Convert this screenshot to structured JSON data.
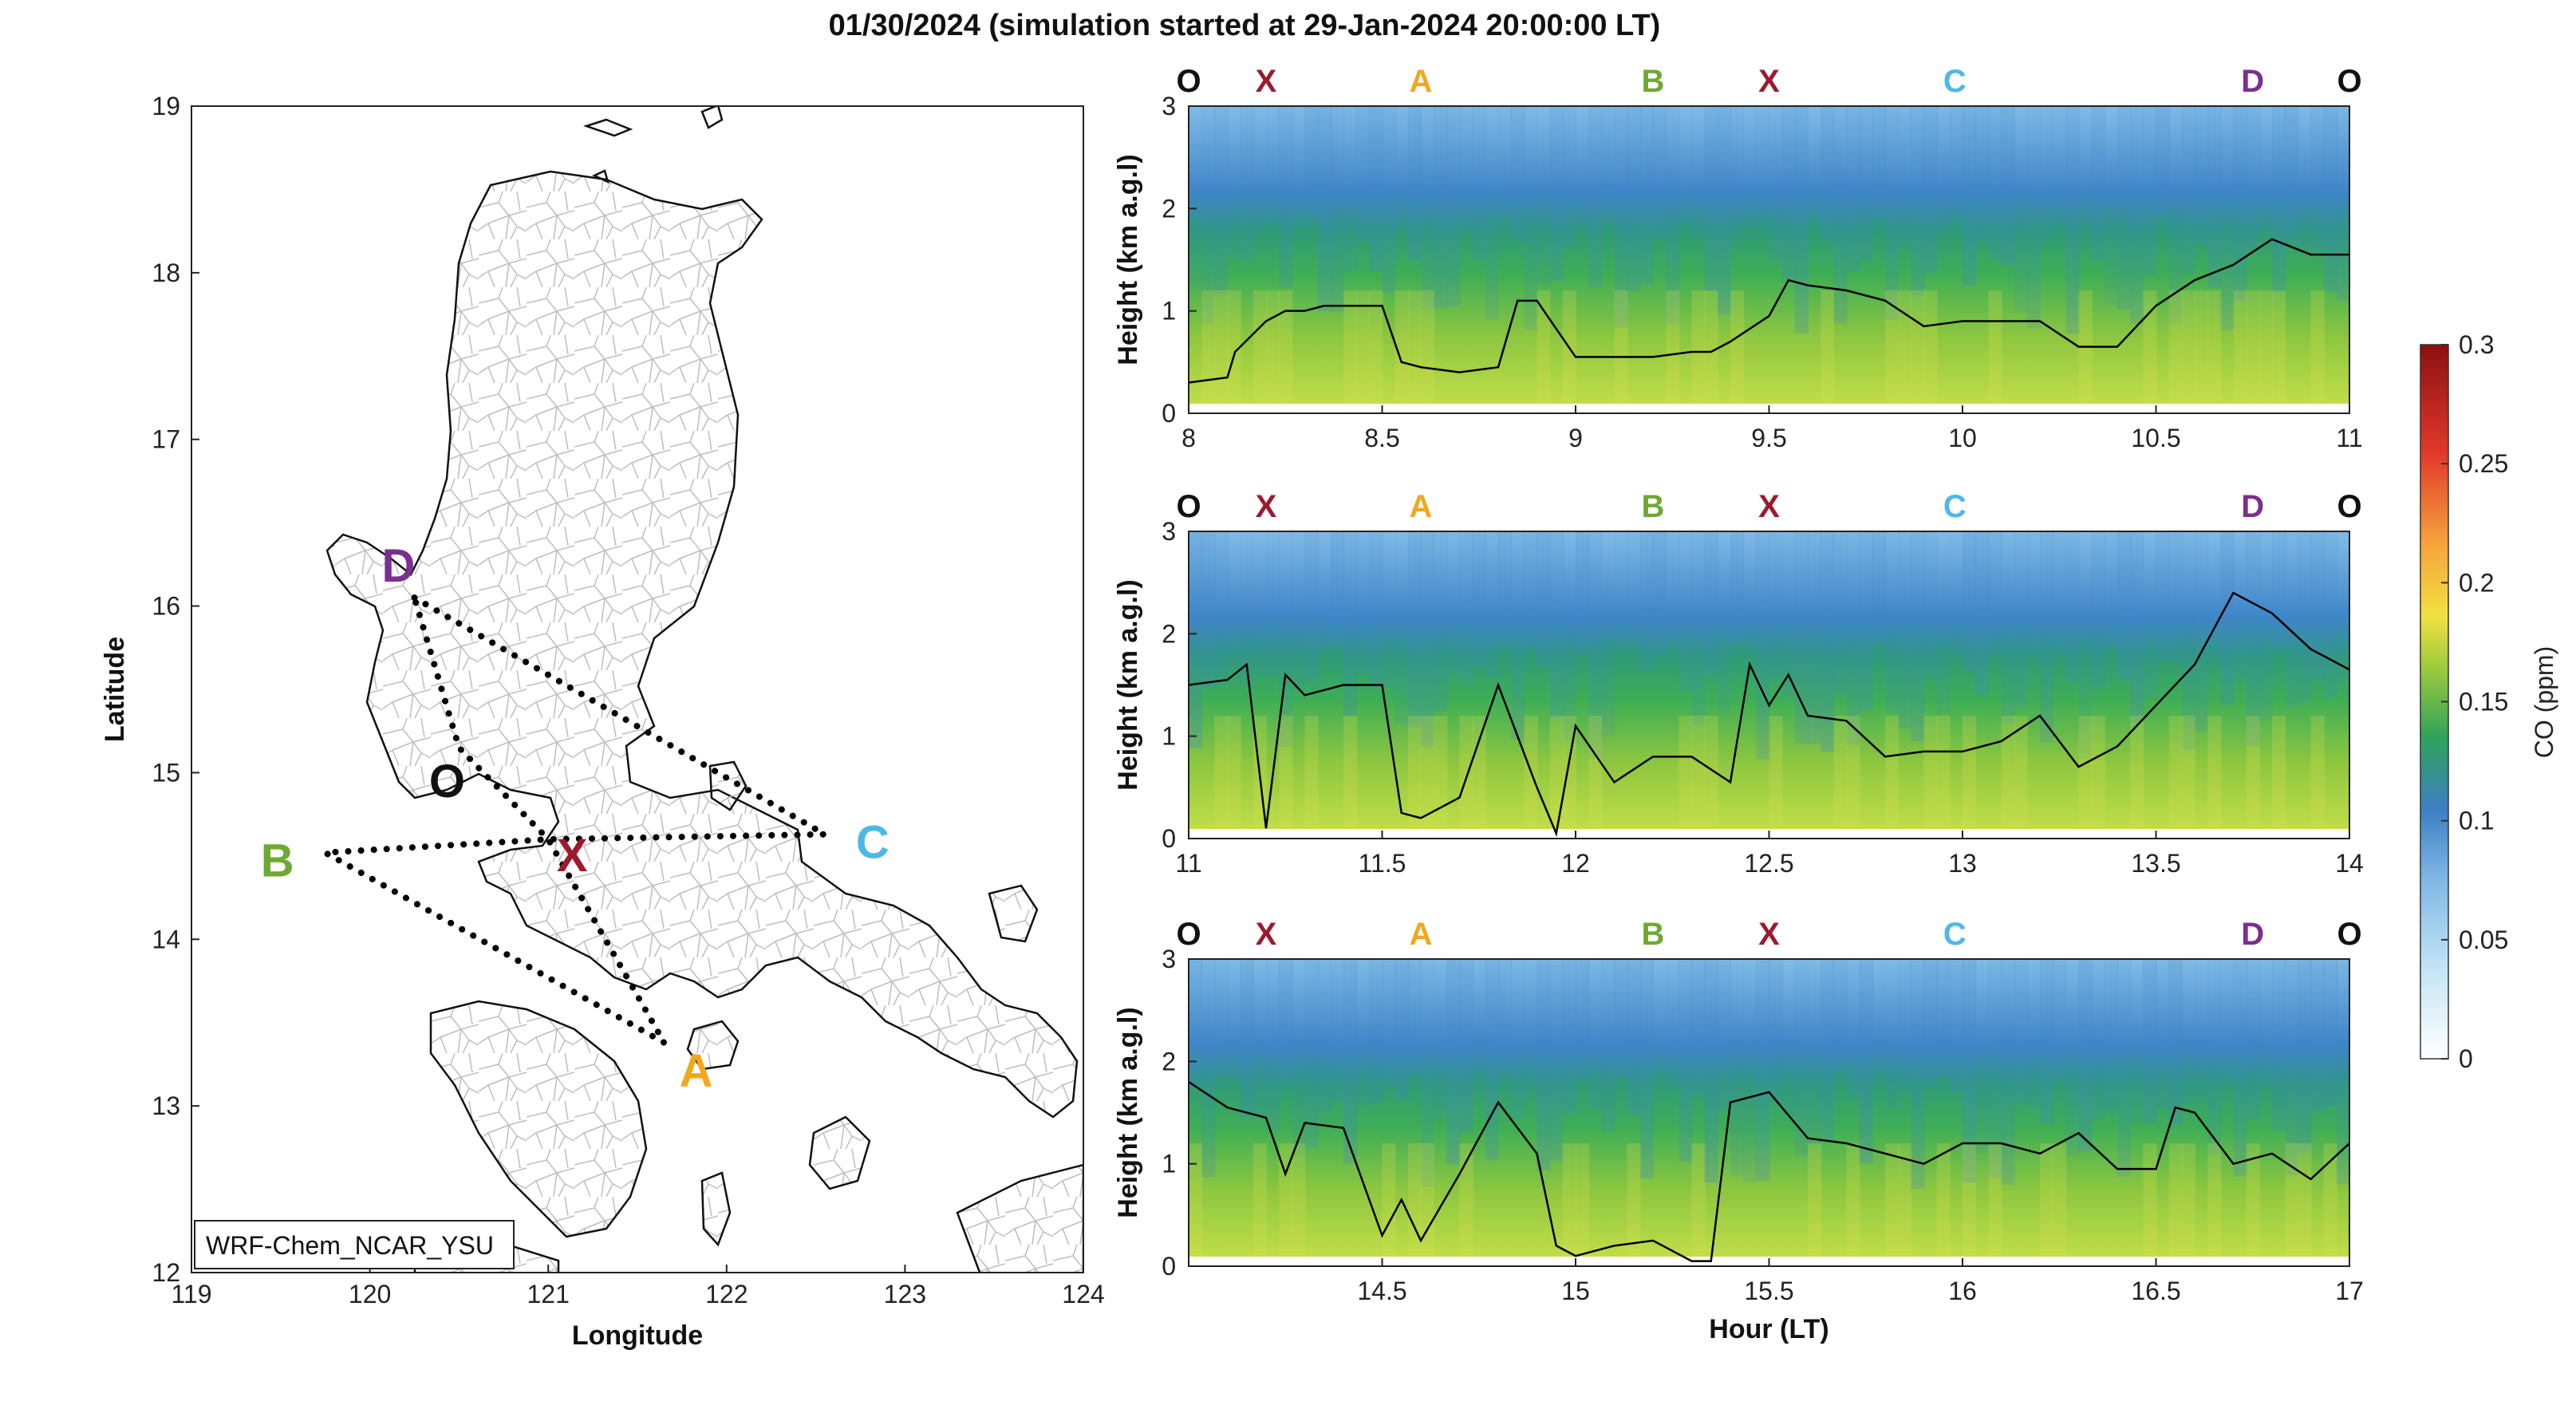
{
  "figure": {
    "title": "01/30/2024 (simulation started at 29-Jan-2024 20:00:00 LT)"
  },
  "colors": {
    "O": "#111111",
    "X": "#9c1a2e",
    "A": "#f2a81d",
    "B": "#6fa832",
    "C": "#4db8e8",
    "D": "#7b2f8f"
  },
  "chart_data": [
    {
      "type": "map",
      "xlabel": "Longitude",
      "ylabel": "Latitude",
      "xlim": [
        119,
        124
      ],
      "ylim": [
        12,
        19
      ],
      "xticks": [
        119,
        120,
        121,
        122,
        123,
        124
      ],
      "yticks": [
        12,
        13,
        14,
        15,
        16,
        17,
        18,
        19
      ],
      "model_label": "WRF-Chem_NCAR_YSU",
      "points": [
        {
          "name": "D",
          "lon": 120.25,
          "lat": 16.05
        },
        {
          "name": "O",
          "lon": 120.5,
          "lat": 15.15
        },
        {
          "name": "X",
          "lon": 121.0,
          "lat": 14.6
        },
        {
          "name": "B",
          "lon": 119.75,
          "lat": 14.52
        },
        {
          "name": "C",
          "lon": 122.55,
          "lat": 14.63
        },
        {
          "name": "A",
          "lon": 121.65,
          "lat": 13.38
        }
      ],
      "route": [
        "D",
        "C",
        "X",
        "B",
        "A",
        "X",
        "O",
        "D"
      ]
    },
    {
      "type": "heatmap",
      "panel": 1,
      "xlim": [
        8,
        11
      ],
      "ylim": [
        0,
        3
      ],
      "xticks": [
        8,
        8.5,
        9,
        9.5,
        10,
        10.5,
        11
      ],
      "yticks": [
        0,
        1,
        2,
        3
      ],
      "ylabel": "Height (km a.g.l)",
      "xlabel": "",
      "segment_labels": [
        {
          "name": "O",
          "x": 8.0
        },
        {
          "name": "X",
          "x": 8.2
        },
        {
          "name": "A",
          "x": 8.6
        },
        {
          "name": "B",
          "x": 9.2
        },
        {
          "name": "X",
          "x": 9.5
        },
        {
          "name": "C",
          "x": 9.98
        },
        {
          "name": "D",
          "x": 10.75
        },
        {
          "name": "O",
          "x": 11.0
        }
      ],
      "pbl_height": {
        "x": [
          8.0,
          8.1,
          8.12,
          8.2,
          8.25,
          8.3,
          8.35,
          8.5,
          8.55,
          8.6,
          8.7,
          8.8,
          8.85,
          8.9,
          9.0,
          9.1,
          9.2,
          9.3,
          9.35,
          9.4,
          9.5,
          9.55,
          9.6,
          9.7,
          9.8,
          9.9,
          10.0,
          10.1,
          10.2,
          10.3,
          10.4,
          10.5,
          10.6,
          10.7,
          10.8,
          10.9,
          11.0
        ],
        "y": [
          0.3,
          0.35,
          0.6,
          0.9,
          1.0,
          1.0,
          1.05,
          1.05,
          0.5,
          0.45,
          0.4,
          0.45,
          1.1,
          1.1,
          0.55,
          0.55,
          0.55,
          0.6,
          0.6,
          0.7,
          0.95,
          1.3,
          1.25,
          1.2,
          1.1,
          0.85,
          0.9,
          0.9,
          0.9,
          0.65,
          0.65,
          1.05,
          1.3,
          1.45,
          1.7,
          1.55,
          1.55
        ]
      }
    },
    {
      "type": "heatmap",
      "panel": 2,
      "xlim": [
        11,
        14
      ],
      "ylim": [
        0,
        3
      ],
      "xticks": [
        11,
        11.5,
        12,
        12.5,
        13,
        13.5,
        14
      ],
      "yticks": [
        0,
        1,
        2,
        3
      ],
      "ylabel": "Height (km a.g.l)",
      "xlabel": "",
      "segment_labels": [
        {
          "name": "O",
          "x": 11.0
        },
        {
          "name": "X",
          "x": 11.2
        },
        {
          "name": "A",
          "x": 11.6
        },
        {
          "name": "B",
          "x": 12.2
        },
        {
          "name": "X",
          "x": 12.5
        },
        {
          "name": "C",
          "x": 12.98
        },
        {
          "name": "D",
          "x": 13.75
        },
        {
          "name": "O",
          "x": 14.0
        }
      ],
      "pbl_height": {
        "x": [
          11.0,
          11.1,
          11.15,
          11.2,
          11.25,
          11.3,
          11.4,
          11.5,
          11.55,
          11.6,
          11.7,
          11.8,
          11.9,
          11.95,
          12.0,
          12.1,
          12.2,
          12.3,
          12.4,
          12.45,
          12.5,
          12.55,
          12.6,
          12.7,
          12.8,
          12.9,
          13.0,
          13.1,
          13.2,
          13.3,
          13.4,
          13.5,
          13.6,
          13.7,
          13.8,
          13.9,
          14.0
        ],
        "y": [
          1.5,
          1.55,
          1.7,
          0.1,
          1.6,
          1.4,
          1.5,
          1.5,
          0.25,
          0.2,
          0.4,
          1.5,
          0.5,
          0.05,
          1.1,
          0.55,
          0.8,
          0.8,
          0.55,
          1.7,
          1.3,
          1.6,
          1.2,
          1.15,
          0.8,
          0.85,
          0.85,
          0.95,
          1.2,
          0.7,
          0.9,
          1.3,
          1.7,
          2.4,
          2.2,
          1.85,
          1.65
        ]
      }
    },
    {
      "type": "heatmap",
      "panel": 3,
      "xlim": [
        14,
        17
      ],
      "ylim": [
        0,
        3
      ],
      "xticks": [
        14.5,
        15,
        15.5,
        16,
        16.5,
        17
      ],
      "yticks": [
        0,
        1,
        2,
        3
      ],
      "ylabel": "Height (km a.g.l)",
      "xlabel": "Hour (LT)",
      "segment_labels": [
        {
          "name": "O",
          "x": 14.0
        },
        {
          "name": "X",
          "x": 14.2
        },
        {
          "name": "A",
          "x": 14.6
        },
        {
          "name": "B",
          "x": 15.2
        },
        {
          "name": "X",
          "x": 15.5
        },
        {
          "name": "C",
          "x": 15.98
        },
        {
          "name": "D",
          "x": 16.75
        },
        {
          "name": "O",
          "x": 17.0
        }
      ],
      "pbl_height": {
        "x": [
          14.0,
          14.1,
          14.2,
          14.25,
          14.3,
          14.4,
          14.5,
          14.55,
          14.6,
          14.7,
          14.8,
          14.9,
          14.95,
          15.0,
          15.1,
          15.2,
          15.3,
          15.35,
          15.4,
          15.5,
          15.6,
          15.7,
          15.8,
          15.9,
          16.0,
          16.1,
          16.2,
          16.3,
          16.4,
          16.5,
          16.55,
          16.6,
          16.7,
          16.8,
          16.9,
          17.0
        ],
        "y": [
          1.8,
          1.55,
          1.45,
          0.9,
          1.4,
          1.35,
          0.3,
          0.65,
          0.25,
          0.9,
          1.6,
          1.1,
          0.2,
          0.1,
          0.2,
          0.25,
          0.05,
          0.05,
          1.6,
          1.7,
          1.25,
          1.2,
          1.1,
          1.0,
          1.2,
          1.2,
          1.1,
          1.3,
          0.95,
          0.95,
          1.55,
          1.5,
          1.0,
          1.1,
          0.85,
          1.2
        ]
      }
    },
    {
      "type": "colorbar",
      "label": "CO (ppm)",
      "lim": [
        0,
        0.3
      ],
      "ticks": [
        0,
        0.05,
        0.1,
        0.15,
        0.2,
        0.25,
        0.3
      ]
    }
  ]
}
